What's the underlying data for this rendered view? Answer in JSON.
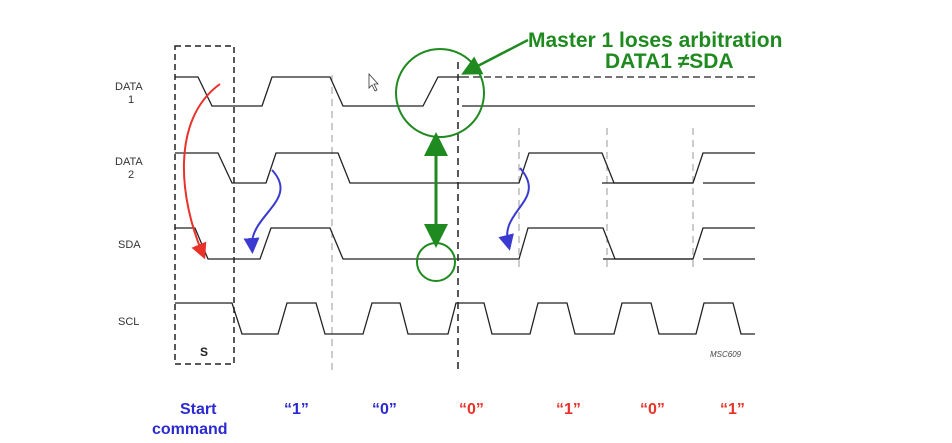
{
  "signals": {
    "data1_line1": "DATA",
    "data1_line2": "1",
    "data2_line1": "DATA",
    "data2_line2": "2",
    "sda": "SDA",
    "scl": "SCL"
  },
  "callout": {
    "line1": "Master 1 loses arbitration",
    "line2": "DATA1 ≠SDA"
  },
  "start_box_label": "S",
  "figure_code": "MSC609",
  "bits": {
    "start_line1": "Start",
    "start_line2": "command",
    "b1": "“1”",
    "b2": "“0”",
    "b3": "“0”",
    "b4": "“1”",
    "b5": "“0”",
    "b6": "“1”"
  },
  "colors": {
    "start": "#2a2ad0",
    "bits_before": "#2a2ad0",
    "bits_after": "#e8322a",
    "callout": "#1f8a1f"
  }
}
